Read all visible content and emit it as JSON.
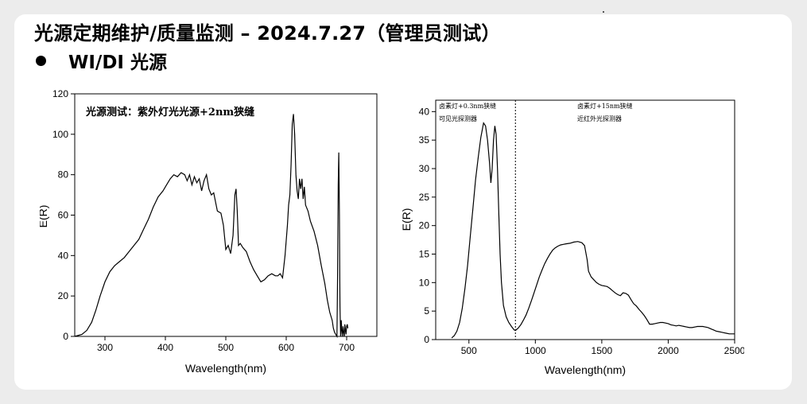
{
  "header": {
    "title": "光源定期维护/质量监测 – 2024.7.27（管理员测试）",
    "bullet": "WI/DI 光源"
  },
  "chart_data": [
    {
      "type": "line",
      "title": "",
      "xlabel": "Wavelength(nm)",
      "ylabel": "E(R)",
      "xlim": [
        250,
        750
      ],
      "ylim": [
        0,
        120
      ],
      "xticks": [
        300,
        400,
        500,
        600,
        700
      ],
      "yticks": [
        0,
        20,
        40,
        60,
        80,
        100,
        120
      ],
      "annotation": "光源测试：紫外灯光光源+2nm狭缝",
      "color": "#000000",
      "series": [
        {
          "name": "",
          "x": [
            250,
            262,
            270,
            278,
            285,
            292,
            300,
            308,
            316,
            324,
            332,
            340,
            348,
            356,
            364,
            372,
            380,
            388,
            396,
            402,
            408,
            414,
            420,
            426,
            432,
            436,
            440,
            444,
            448,
            452,
            456,
            460,
            464,
            468,
            472,
            476,
            480,
            486,
            492,
            496,
            500,
            504,
            508,
            512,
            515,
            517,
            519,
            521,
            524,
            528,
            534,
            540,
            546,
            552,
            558,
            564,
            570,
            576,
            582,
            586,
            590,
            594,
            598,
            602,
            604,
            606,
            608,
            610,
            612,
            614,
            616,
            618,
            620,
            622,
            624,
            626,
            628,
            630,
            632,
            636,
            640,
            646,
            652,
            658,
            664,
            668,
            672,
            676,
            678,
            680,
            682,
            684,
            685,
            686,
            687,
            688,
            689,
            690,
            691,
            692,
            693,
            694,
            695,
            696,
            697,
            698,
            699,
            700,
            701,
            702
          ],
          "y": [
            0,
            1,
            3,
            7,
            13,
            20,
            27,
            32,
            35,
            37,
            39,
            42,
            45,
            48,
            53,
            58,
            64,
            69,
            72,
            75,
            78,
            80,
            79,
            81,
            80,
            77,
            80,
            75,
            79,
            76,
            78,
            72,
            77,
            80,
            73,
            70,
            71,
            62,
            61,
            55,
            43,
            45,
            41,
            50,
            70,
            73,
            62,
            45,
            46,
            44,
            42,
            37,
            33,
            30,
            27,
            28,
            30,
            31,
            30,
            30,
            31,
            29,
            40,
            55,
            65,
            70,
            85,
            105,
            110,
            100,
            80,
            72,
            68,
            78,
            73,
            78,
            68,
            74,
            65,
            62,
            57,
            52,
            45,
            35,
            26,
            18,
            12,
            8,
            4,
            2,
            1,
            0,
            30,
            75,
            91,
            60,
            15,
            0,
            8,
            3,
            0,
            5,
            2,
            0,
            6,
            3,
            1,
            5,
            6,
            4
          ]
        }
      ]
    },
    {
      "type": "line",
      "title": "",
      "xlabel": "Wavelength(nm)",
      "ylabel": "E(R)",
      "xlim": [
        250,
        2500
      ],
      "ylim": [
        0,
        42
      ],
      "xticks": [
        500,
        1000,
        1500,
        2000,
        2500
      ],
      "yticks": [
        0,
        5,
        10,
        15,
        20,
        25,
        30,
        35,
        40
      ],
      "annotations": [
        [
          "卤素灯+0.3nm狭缝",
          "可见光探测器"
        ],
        [
          "卤素灯+15nm狭缝",
          "近红外光探测器"
        ]
      ],
      "detector_split": 850,
      "color": "#000000",
      "series": [
        {
          "name": "",
          "x": [
            370,
            390,
            410,
            430,
            450,
            470,
            490,
            510,
            530,
            550,
            570,
            590,
            610,
            625,
            640,
            655,
            665,
            675,
            685,
            695,
            705,
            715,
            725,
            735,
            745,
            760,
            780,
            800,
            820,
            840,
            850,
            870,
            890,
            910,
            930,
            950,
            970,
            990,
            1010,
            1030,
            1050,
            1070,
            1090,
            1110,
            1130,
            1150,
            1170,
            1190,
            1210,
            1230,
            1260,
            1290,
            1320,
            1350,
            1370,
            1390,
            1400,
            1420,
            1440,
            1460,
            1480,
            1500,
            1520,
            1540,
            1560,
            1580,
            1600,
            1620,
            1640,
            1660,
            1680,
            1700,
            1720,
            1740,
            1760,
            1780,
            1800,
            1820,
            1840,
            1860,
            1880,
            1900,
            1920,
            1940,
            1960,
            1980,
            2000,
            2020,
            2040,
            2060,
            2080,
            2100,
            2120,
            2140,
            2160,
            2180,
            2200,
            2220,
            2240,
            2260,
            2280,
            2300,
            2320,
            2340,
            2360,
            2380,
            2400,
            2420,
            2440,
            2460,
            2480,
            2500
          ],
          "y": [
            0.3,
            0.7,
            1.5,
            3,
            5.5,
            9,
            13,
            18,
            23,
            28,
            32,
            35.5,
            38,
            37.5,
            35,
            31,
            27.5,
            30,
            35,
            37.5,
            36,
            30,
            22,
            15,
            10,
            6,
            4,
            3,
            2.3,
            1.7,
            1.6,
            2,
            2.6,
            3.4,
            4.3,
            5.5,
            6.8,
            8.2,
            9.6,
            11,
            12.2,
            13.3,
            14.2,
            15,
            15.7,
            16.1,
            16.4,
            16.6,
            16.7,
            16.8,
            16.9,
            17.1,
            17.2,
            17,
            16.5,
            14,
            12,
            11,
            10.5,
            10,
            9.7,
            9.5,
            9.4,
            9.3,
            9,
            8.6,
            8.2,
            7.9,
            7.7,
            8.2,
            8.1,
            7.8,
            7,
            6.3,
            5.9,
            5.3,
            4.8,
            4.2,
            3.5,
            2.7,
            2.7,
            2.8,
            2.9,
            3,
            3,
            2.9,
            2.8,
            2.6,
            2.5,
            2.4,
            2.5,
            2.4,
            2.3,
            2.2,
            2.1,
            2.1,
            2.2,
            2.3,
            2.3,
            2.3,
            2.2,
            2.1,
            1.9,
            1.7,
            1.5,
            1.4,
            1.3,
            1.2,
            1.1,
            1,
            1,
            1
          ]
        }
      ]
    }
  ]
}
